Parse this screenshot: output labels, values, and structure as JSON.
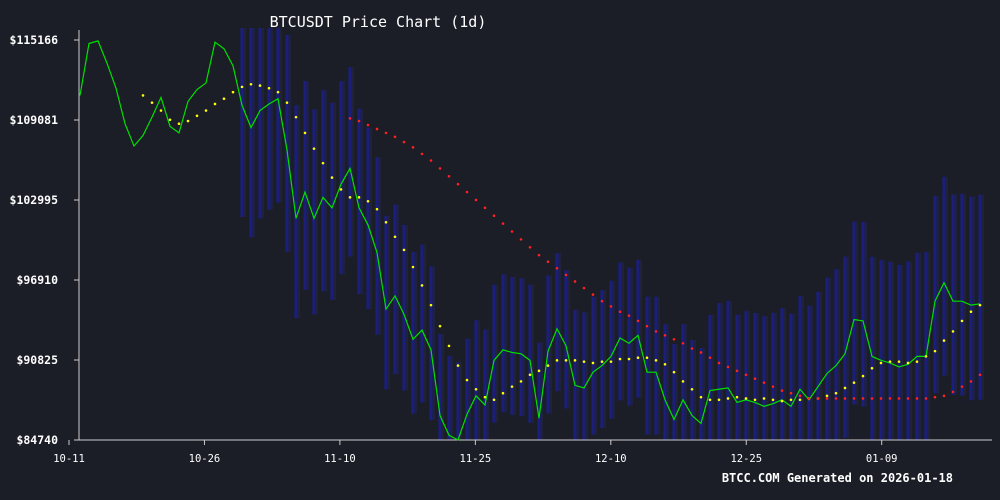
{
  "chart_data": {
    "type": "line",
    "title": "BTCUSDT Price Chart (1d)",
    "footer": "BTCC.COM Generated on 2026-01-18",
    "y_tick_labels": [
      "$115166",
      "$109081",
      "$102995",
      "$96910",
      "$90825",
      "$84740"
    ],
    "y_tick_values": [
      115166,
      109081,
      102995,
      96910,
      90825,
      84740
    ],
    "ylim": [
      84740,
      115166
    ],
    "x_tick_labels": [
      "10-11",
      "10-26",
      "11-10",
      "11-25",
      "12-10",
      "12-25",
      "01-09"
    ],
    "x_tick_index": [
      0,
      15,
      30,
      45,
      60,
      75,
      90
    ],
    "x_start_date": "2025-10-11",
    "grid": "vertical blue lines behind price",
    "colors": {
      "background": "#1b1d27",
      "price": "#00e000",
      "ma_short": "#ffff00",
      "ma_long": "#ff2020",
      "band": "#1c1f80",
      "axis": "#cccccc"
    },
    "series": [
      {
        "name": "",
        "role": "price",
        "values": [
          110950,
          114900,
          115100,
          113400,
          111500,
          108800,
          107100,
          107900,
          109300,
          110800,
          108600,
          108100,
          110500,
          111400,
          111900,
          115000,
          114500,
          113200,
          110200,
          108500,
          109800,
          110300,
          110700,
          106800,
          101600,
          103600,
          101600,
          103200,
          102400,
          104200,
          105400,
          102400,
          101100,
          99000,
          94700,
          95700,
          94300,
          92400,
          93100,
          91600,
          86600,
          85100,
          84750,
          86700,
          88100,
          87400,
          90800,
          91600,
          91400,
          91300,
          90800,
          86400,
          91500,
          93200,
          91900,
          88900,
          88700,
          89900,
          90400,
          91100,
          92500,
          92100,
          92700,
          89900,
          89900,
          87800,
          86300,
          87800,
          86600,
          86000,
          88500,
          88600,
          88700,
          87600,
          87800,
          87600,
          87300,
          87500,
          87800,
          87300,
          88600,
          87800,
          88800,
          89800,
          90400,
          91300,
          93900,
          93800,
          91100,
          90800,
          90600,
          90300,
          90500,
          91100,
          91100,
          95300,
          96700,
          95300,
          95300,
          95000,
          95100
        ]
      },
      {
        "name": "",
        "role": "ma_short",
        "values": [
          null,
          null,
          null,
          null,
          null,
          null,
          null,
          110950,
          110400,
          109800,
          109100,
          108800,
          109000,
          109400,
          109800,
          110300,
          110700,
          111200,
          111600,
          111800,
          111700,
          111500,
          111200,
          110400,
          109300,
          108100,
          106900,
          105800,
          104700,
          103800,
          103200,
          103200,
          102900,
          102300,
          101300,
          100200,
          99200,
          97900,
          96500,
          95000,
          93400,
          91900,
          90400,
          89300,
          88600,
          88000,
          87800,
          88300,
          88800,
          89200,
          89700,
          90000,
          90400,
          90800,
          90800,
          90800,
          90700,
          90600,
          90700,
          90700,
          90900,
          90900,
          91000,
          91000,
          90800,
          90500,
          89900,
          89200,
          88600,
          88000,
          87800,
          87800,
          87900,
          88000,
          87900,
          87800,
          87900,
          87800,
          87700,
          87800,
          87800,
          87900,
          87900,
          88100,
          88300,
          88700,
          89100,
          89600,
          90200,
          90600,
          90700,
          90700,
          90600,
          90700,
          91100,
          91500,
          92300,
          93000,
          93800,
          94500,
          95000
        ]
      },
      {
        "name": "",
        "role": "ma_long",
        "values": [
          null,
          null,
          null,
          null,
          null,
          null,
          null,
          null,
          null,
          null,
          null,
          null,
          null,
          null,
          null,
          null,
          null,
          null,
          null,
          null,
          null,
          null,
          null,
          null,
          null,
          null,
          null,
          null,
          null,
          null,
          109200,
          109000,
          108700,
          108400,
          108100,
          107800,
          107400,
          107000,
          106500,
          106000,
          105400,
          104800,
          104200,
          103600,
          103000,
          102400,
          101800,
          101200,
          100600,
          100000,
          99400,
          98800,
          98300,
          97800,
          97300,
          96800,
          96300,
          95800,
          95300,
          94900,
          94500,
          94200,
          93800,
          93400,
          93000,
          92700,
          92400,
          92100,
          91700,
          91400,
          91000,
          90600,
          90300,
          90000,
          89700,
          89400,
          89100,
          88800,
          88500,
          88300,
          88100,
          87900,
          87900,
          87900,
          87900,
          87900,
          87900,
          87900,
          87900,
          87900,
          87900,
          87900,
          87900,
          87900,
          87900,
          88000,
          88100,
          88400,
          88800,
          89200,
          89700
        ]
      }
    ]
  }
}
